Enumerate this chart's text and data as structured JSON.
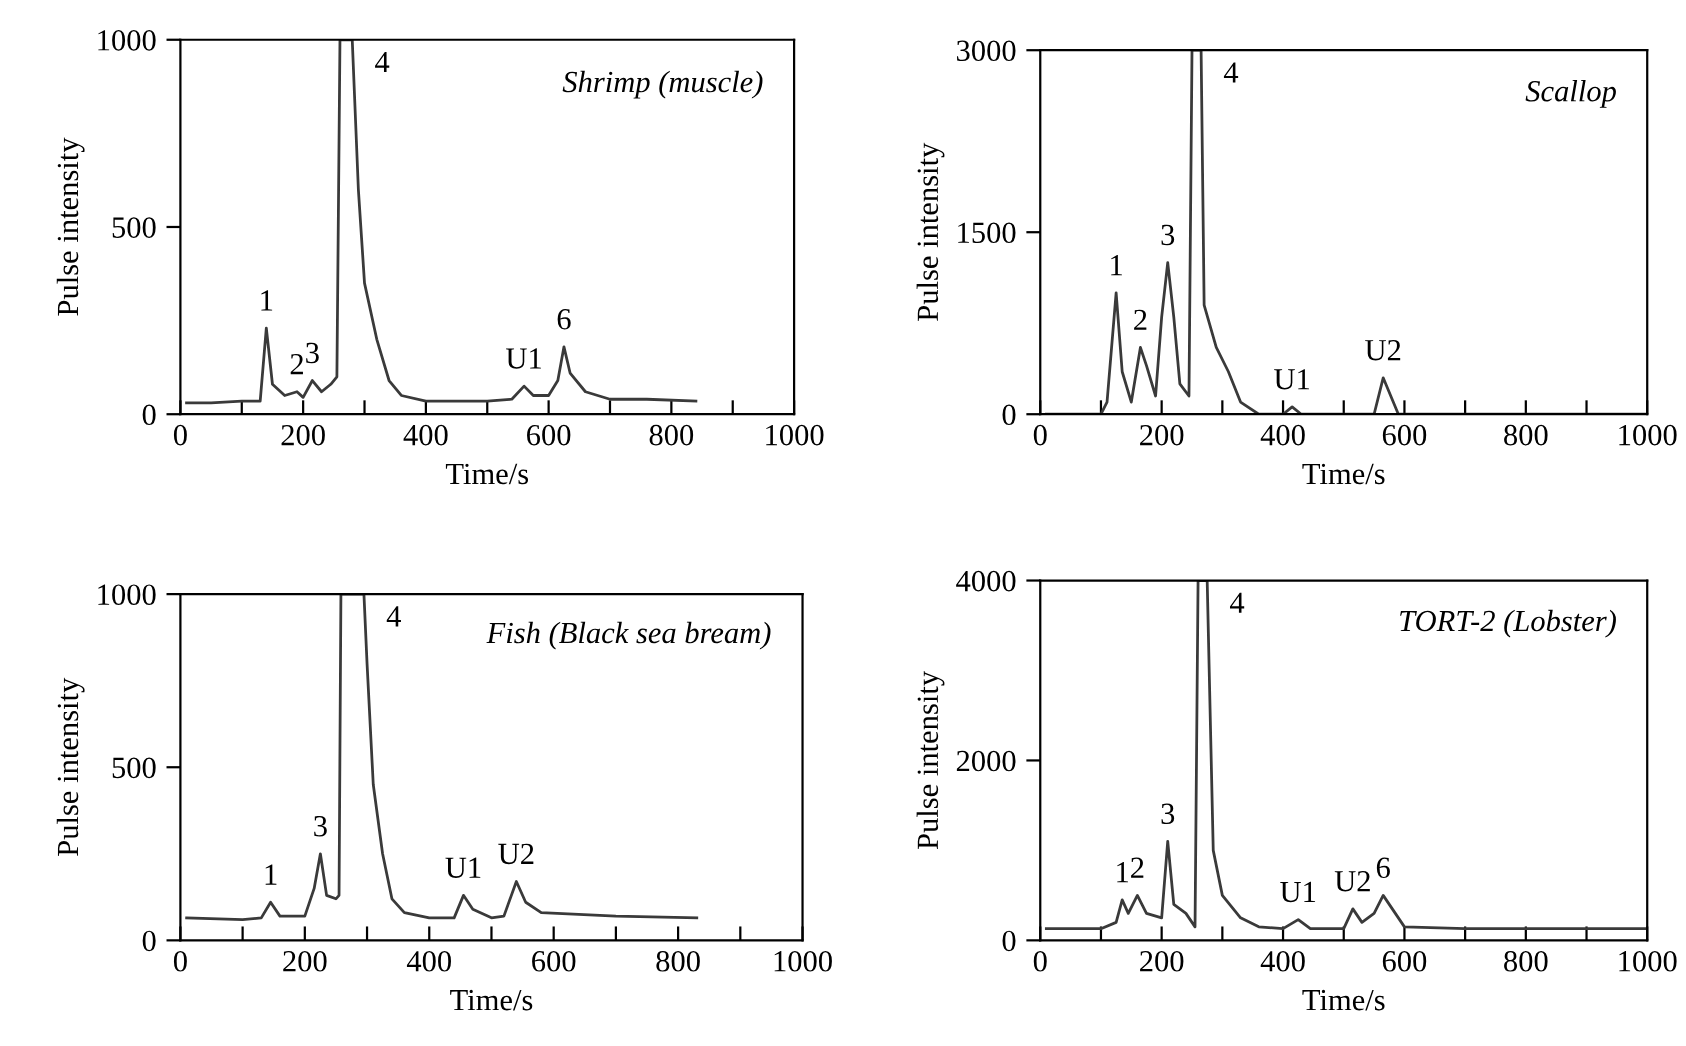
{
  "chart_data": [
    {
      "type": "line",
      "xlabel": "Time/s",
      "ylabel": "Pulse intensity",
      "xlim": [
        0,
        1000
      ],
      "ylim": [
        0,
        1000
      ],
      "xticks": [
        0,
        {
          "value": 100,
          "label": null
        },
        200,
        {
          "value": 300,
          "label": null
        },
        400,
        {
          "value": 500,
          "label": null
        },
        600,
        {
          "value": 700,
          "label": null
        },
        800,
        {
          "value": 900,
          "label": null
        },
        1000
      ],
      "yticks": [
        0,
        500,
        1000
      ],
      "series": [
        {
          "color": "#3a3a3a",
          "x": [
            10,
            50,
            100,
            130,
            140,
            150,
            170,
            190,
            200,
            215,
            230,
            245,
            255,
            260,
            280,
            290,
            300,
            320,
            340,
            360,
            400,
            450,
            500,
            540,
            560,
            575,
            600,
            615,
            625,
            635,
            660,
            700,
            760,
            840
          ],
          "values": [
            30,
            30,
            35,
            35,
            230,
            80,
            50,
            60,
            45,
            90,
            60,
            80,
            100,
            1000,
            1000,
            600,
            350,
            200,
            90,
            50,
            35,
            35,
            35,
            40,
            75,
            50,
            50,
            90,
            180,
            110,
            60,
            40,
            40,
            35
          ]
        }
      ],
      "annotations": [
        "Shrimp (muscle)",
        {
          "text": "1",
          "x": 140,
          "y": 230
        },
        {
          "text": "2",
          "x": 190,
          "y": 60
        },
        {
          "text": "3",
          "x": 215,
          "y": 90
        },
        {
          "text": "4",
          "x": 280,
          "y": 1000
        },
        {
          "text": "U1",
          "x": 560,
          "y": 75
        },
        {
          "text": "6",
          "x": 625,
          "y": 180
        }
      ]
    },
    {
      "type": "line",
      "xlabel": "Time/s",
      "ylabel": "Pulse intensity",
      "xlim": [
        0,
        1000
      ],
      "ylim": [
        0,
        3000
      ],
      "xticks": [
        0,
        {
          "value": 100,
          "label": null
        },
        200,
        {
          "value": 300,
          "label": null
        },
        400,
        {
          "value": 500,
          "label": null
        },
        600,
        {
          "value": 700,
          "label": null
        },
        800,
        {
          "value": 900,
          "label": null
        },
        1000
      ],
      "yticks": [
        0,
        1500,
        3000
      ],
      "series": [
        {
          "color": "#3a3a3a",
          "x": [
            10,
            100,
            110,
            125,
            135,
            150,
            165,
            175,
            190,
            200,
            210,
            220,
            230,
            245,
            250,
            265,
            270,
            290,
            310,
            330,
            360,
            400,
            415,
            430,
            550,
            565,
            590,
            1000
          ],
          "values": [
            0,
            0,
            100,
            1000,
            350,
            100,
            550,
            400,
            150,
            800,
            1250,
            800,
            250,
            150,
            3000,
            3000,
            900,
            550,
            350,
            100,
            0,
            0,
            60,
            0,
            0,
            300,
            0,
            0
          ]
        }
      ],
      "annotations": [
        "Scallop",
        {
          "text": "1",
          "x": 125,
          "y": 1000
        },
        {
          "text": "2",
          "x": 165,
          "y": 550
        },
        {
          "text": "3",
          "x": 210,
          "y": 1250
        },
        {
          "text": "4",
          "x": 265,
          "y": 3000
        },
        {
          "text": "U1",
          "x": 415,
          "y": 60
        },
        {
          "text": "U2",
          "x": 565,
          "y": 300
        }
      ]
    },
    {
      "type": "line",
      "xlabel": "Time/s",
      "ylabel": "Pulse intensity",
      "xlim": [
        0,
        1000
      ],
      "ylim": [
        0,
        1000
      ],
      "xticks": [
        0,
        {
          "value": 100,
          "label": null
        },
        200,
        {
          "value": 300,
          "label": null
        },
        400,
        {
          "value": 500,
          "label": null
        },
        600,
        {
          "value": 700,
          "label": null
        },
        800,
        {
          "value": 900,
          "label": null
        },
        1000
      ],
      "yticks": [
        0,
        500,
        1000
      ],
      "series": [
        {
          "color": "#3a3a3a",
          "x": [
            10,
            100,
            130,
            145,
            160,
            200,
            215,
            225,
            235,
            250,
            255,
            258,
            295,
            300,
            310,
            325,
            340,
            360,
            400,
            440,
            455,
            470,
            500,
            520,
            540,
            555,
            580,
            700,
            830
          ],
          "values": [
            65,
            60,
            65,
            110,
            70,
            70,
            150,
            250,
            130,
            120,
            130,
            1000,
            1000,
            800,
            450,
            250,
            120,
            80,
            65,
            65,
            130,
            90,
            65,
            70,
            170,
            110,
            80,
            70,
            65
          ]
        }
      ],
      "annotations": [
        "Fish (Black sea bream)",
        {
          "text": "1",
          "x": 145,
          "y": 110
        },
        {
          "text": "3",
          "x": 225,
          "y": 250
        },
        {
          "text": "4",
          "x": 295,
          "y": 1000
        },
        {
          "text": "U1",
          "x": 455,
          "y": 130
        },
        {
          "text": "U2",
          "x": 540,
          "y": 170
        }
      ]
    },
    {
      "type": "line",
      "xlabel": "Time/s",
      "ylabel": "Pulse intensity",
      "xlim": [
        0,
        1000
      ],
      "ylim": [
        0,
        4000
      ],
      "xticks": [
        0,
        {
          "value": 100,
          "label": null
        },
        200,
        {
          "value": 300,
          "label": null
        },
        400,
        {
          "value": 500,
          "label": null
        },
        600,
        {
          "value": 700,
          "label": null
        },
        800,
        {
          "value": 900,
          "label": null
        },
        1000
      ],
      "yticks": [
        0,
        2000,
        4000
      ],
      "series": [
        {
          "color": "#3a3a3a",
          "x": [
            10,
            100,
            125,
            135,
            145,
            160,
            175,
            200,
            210,
            220,
            240,
            255,
            260,
            275,
            285,
            300,
            330,
            360,
            400,
            425,
            445,
            500,
            515,
            530,
            550,
            565,
            580,
            600,
            700,
            1000
          ],
          "values": [
            130,
            130,
            200,
            450,
            300,
            500,
            300,
            250,
            1100,
            400,
            300,
            150,
            4000,
            4000,
            1000,
            500,
            250,
            150,
            130,
            230,
            130,
            130,
            350,
            200,
            300,
            500,
            350,
            150,
            130,
            130
          ]
        }
      ],
      "annotations": [
        "TORT-2 (Lobster)",
        {
          "text": "1",
          "x": 135,
          "y": 450
        },
        {
          "text": "2",
          "x": 160,
          "y": 500
        },
        {
          "text": "3",
          "x": 210,
          "y": 1100
        },
        {
          "text": "4",
          "x": 275,
          "y": 4000
        },
        {
          "text": "U1",
          "x": 425,
          "y": 230
        },
        {
          "text": "U2",
          "x": 515,
          "y": 350
        },
        {
          "text": "6",
          "x": 565,
          "y": 500
        }
      ]
    }
  ]
}
